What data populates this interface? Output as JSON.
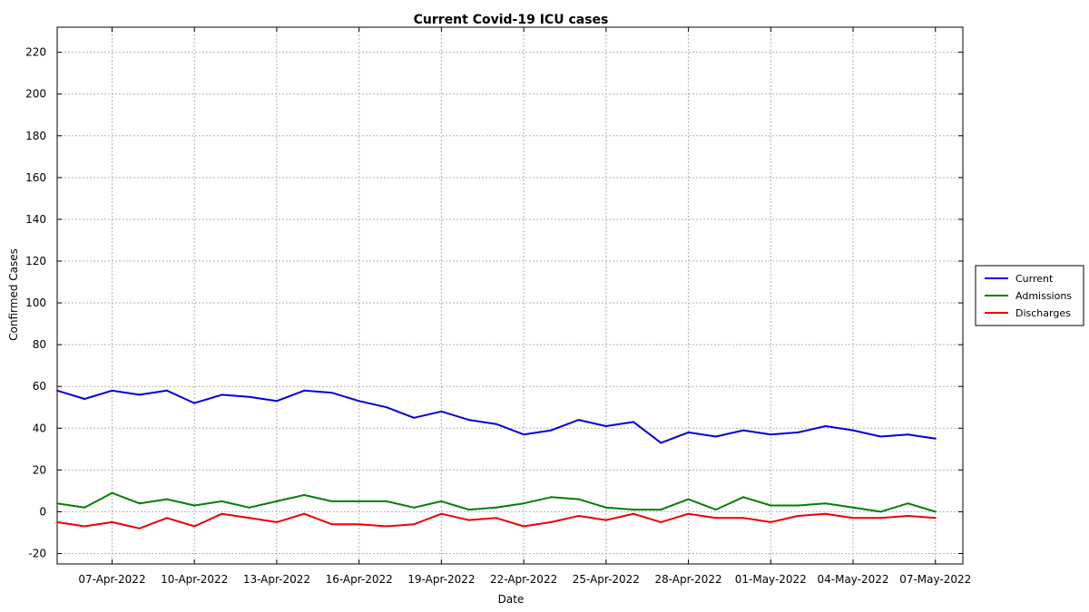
{
  "chart_data": {
    "type": "line",
    "title": "Current Covid-19 ICU cases",
    "xlabel": "Date",
    "ylabel": "Confirmed Cases",
    "ylim": [
      -25,
      232
    ],
    "yticks": [
      -20,
      0,
      20,
      40,
      60,
      80,
      100,
      120,
      140,
      160,
      180,
      200,
      220
    ],
    "xlim": [
      "2022-04-05",
      "2022-05-08"
    ],
    "xtick_labels": [
      "07-Apr-2022",
      "10-Apr-2022",
      "13-Apr-2022",
      "16-Apr-2022",
      "19-Apr-2022",
      "22-Apr-2022",
      "25-Apr-2022",
      "28-Apr-2022",
      "01-May-2022",
      "04-May-2022",
      "07-May-2022"
    ],
    "grid": true,
    "legend_position": "right",
    "x": [
      "2022-04-05",
      "2022-04-06",
      "2022-04-07",
      "2022-04-08",
      "2022-04-09",
      "2022-04-10",
      "2022-04-11",
      "2022-04-12",
      "2022-04-13",
      "2022-04-14",
      "2022-04-15",
      "2022-04-16",
      "2022-04-17",
      "2022-04-18",
      "2022-04-19",
      "2022-04-20",
      "2022-04-21",
      "2022-04-22",
      "2022-04-23",
      "2022-04-24",
      "2022-04-25",
      "2022-04-26",
      "2022-04-27",
      "2022-04-28",
      "2022-04-29",
      "2022-04-30",
      "2022-05-01",
      "2022-05-02",
      "2022-05-03",
      "2022-05-04",
      "2022-05-05",
      "2022-05-06",
      "2022-05-07"
    ],
    "series": [
      {
        "name": "Current",
        "color": "#0000dd",
        "values": [
          58,
          54,
          58,
          56,
          58,
          52,
          56,
          55,
          53,
          58,
          57,
          53,
          50,
          45,
          48,
          44,
          42,
          37,
          39,
          44,
          41,
          43,
          33,
          38,
          36,
          39,
          37,
          38,
          41,
          39,
          36,
          37,
          35
        ]
      },
      {
        "name": "Admissions",
        "color": "#008000",
        "values": [
          4,
          2,
          9,
          4,
          6,
          3,
          5,
          2,
          5,
          8,
          5,
          5,
          5,
          2,
          5,
          1,
          2,
          4,
          7,
          6,
          2,
          1,
          1,
          6,
          1,
          7,
          3,
          3,
          4,
          2,
          0,
          4,
          0
        ]
      },
      {
        "name": "Discharges",
        "color": "#ee0000",
        "values": [
          -5,
          -7,
          -5,
          -8,
          -3,
          -7,
          -1,
          -3,
          -5,
          -1,
          -6,
          -6,
          -7,
          -6,
          -1,
          -4,
          -3,
          -7,
          -5,
          -2,
          -4,
          -1,
          -5,
          -1,
          -3,
          -3,
          -5,
          -2,
          -1,
          -3,
          -3,
          -2,
          -3
        ]
      }
    ]
  }
}
